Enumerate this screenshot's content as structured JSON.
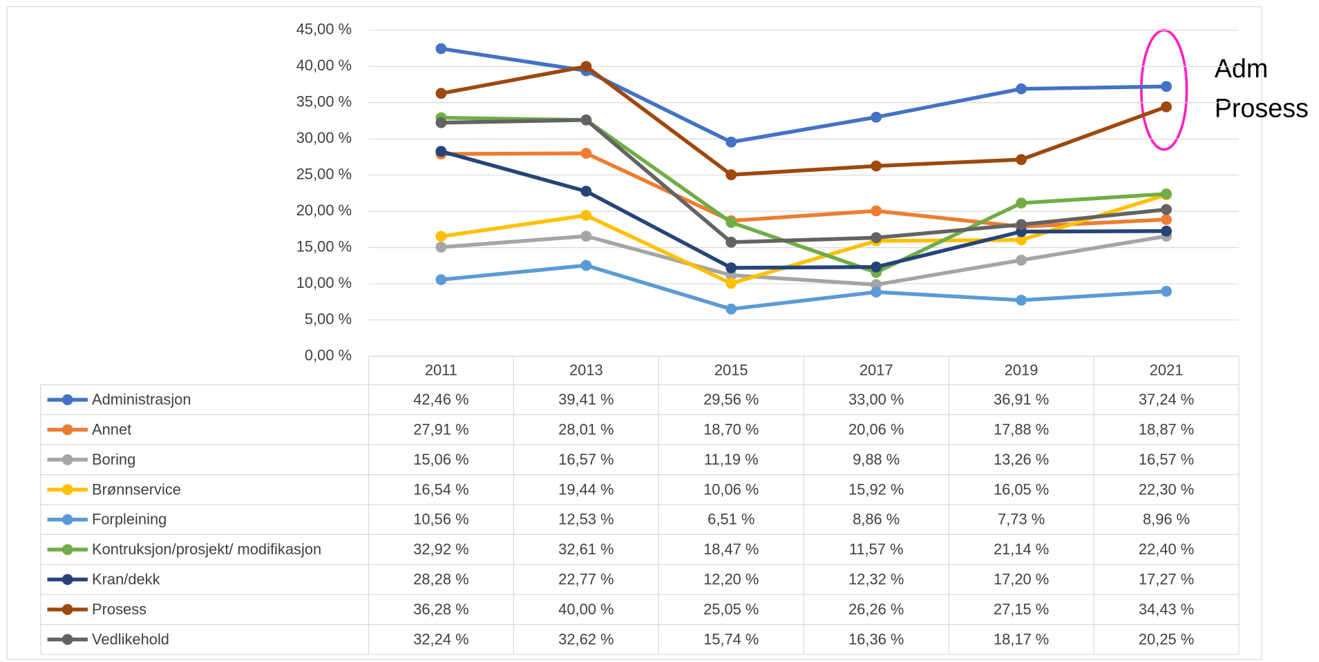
{
  "chart_data": {
    "type": "line",
    "categories": [
      "2011",
      "2013",
      "2015",
      "2017",
      "2019",
      "2021"
    ],
    "ylim": [
      0,
      45
    ],
    "yticks": [
      {
        "value": 0,
        "label": "0,00 %"
      },
      {
        "value": 5,
        "label": "5,00 %"
      },
      {
        "value": 10,
        "label": "10,00 %"
      },
      {
        "value": 15,
        "label": "15,00 %"
      },
      {
        "value": 20,
        "label": "20,00 %"
      },
      {
        "value": 25,
        "label": "25,00 %"
      },
      {
        "value": 30,
        "label": "30,00 %"
      },
      {
        "value": 35,
        "label": "35,00 %"
      },
      {
        "value": 40,
        "label": "40,00 %"
      },
      {
        "value": 45,
        "label": "45,00 %"
      }
    ],
    "grid": true,
    "annotations": [
      "Adm",
      "Prosess"
    ],
    "series": [
      {
        "name": "Administrasjon",
        "color": "#4472c4",
        "values": [
          42.46,
          39.41,
          29.56,
          33.0,
          36.91,
          37.24
        ],
        "value_labels": [
          "42,46 %",
          "39,41 %",
          "29,56 %",
          "33,00 %",
          "36,91 %",
          "37,24 %"
        ]
      },
      {
        "name": "Annet",
        "color": "#ed7d31",
        "values": [
          27.91,
          28.01,
          18.7,
          20.06,
          17.88,
          18.87
        ],
        "value_labels": [
          "27,91 %",
          "28,01 %",
          "18,70 %",
          "20,06 %",
          "17,88 %",
          "18,87 %"
        ]
      },
      {
        "name": "Boring",
        "color": "#a5a5a5",
        "values": [
          15.06,
          16.57,
          11.19,
          9.88,
          13.26,
          16.57
        ],
        "value_labels": [
          "15,06 %",
          "16,57 %",
          "11,19 %",
          "9,88 %",
          "13,26 %",
          "16,57 %"
        ]
      },
      {
        "name": "Brønnservice",
        "color": "#ffc000",
        "values": [
          16.54,
          19.44,
          10.06,
          15.92,
          16.05,
          22.3
        ],
        "value_labels": [
          "16,54 %",
          "19,44 %",
          "10,06 %",
          "15,92 %",
          "16,05 %",
          "22,30 %"
        ]
      },
      {
        "name": "Forpleining",
        "color": "#5b9bd5",
        "values": [
          10.56,
          12.53,
          6.51,
          8.86,
          7.73,
          8.96
        ],
        "value_labels": [
          "10,56 %",
          "12,53 %",
          "6,51 %",
          "8,86 %",
          "7,73 %",
          "8,96 %"
        ]
      },
      {
        "name": "Kontruksjon/prosjekt/ modifikasjon",
        "color": "#70ad47",
        "values": [
          32.92,
          32.61,
          18.47,
          11.57,
          21.14,
          22.4
        ],
        "value_labels": [
          "32,92 %",
          "32,61 %",
          "18,47 %",
          "11,57 %",
          "21,14 %",
          "22,40 %"
        ]
      },
      {
        "name": "Kran/dekk",
        "color": "#264478",
        "values": [
          28.28,
          22.77,
          12.2,
          12.32,
          17.2,
          17.27
        ],
        "value_labels": [
          "28,28 %",
          "22,77 %",
          "12,20 %",
          "12,32 %",
          "17,20 %",
          "17,27 %"
        ]
      },
      {
        "name": "Prosess",
        "color": "#9e480e",
        "values": [
          36.28,
          40.0,
          25.05,
          26.26,
          27.15,
          34.43
        ],
        "value_labels": [
          "36,28 %",
          "40,00 %",
          "25,05 %",
          "26,26 %",
          "27,15 %",
          "34,43 %"
        ]
      },
      {
        "name": "Vedlikehold",
        "color": "#636363",
        "values": [
          32.24,
          32.62,
          15.74,
          16.36,
          18.17,
          20.25
        ],
        "value_labels": [
          "32,24 %",
          "32,62 %",
          "15,74 %",
          "16,36 %",
          "18,17 %",
          "20,25 %"
        ]
      }
    ]
  }
}
